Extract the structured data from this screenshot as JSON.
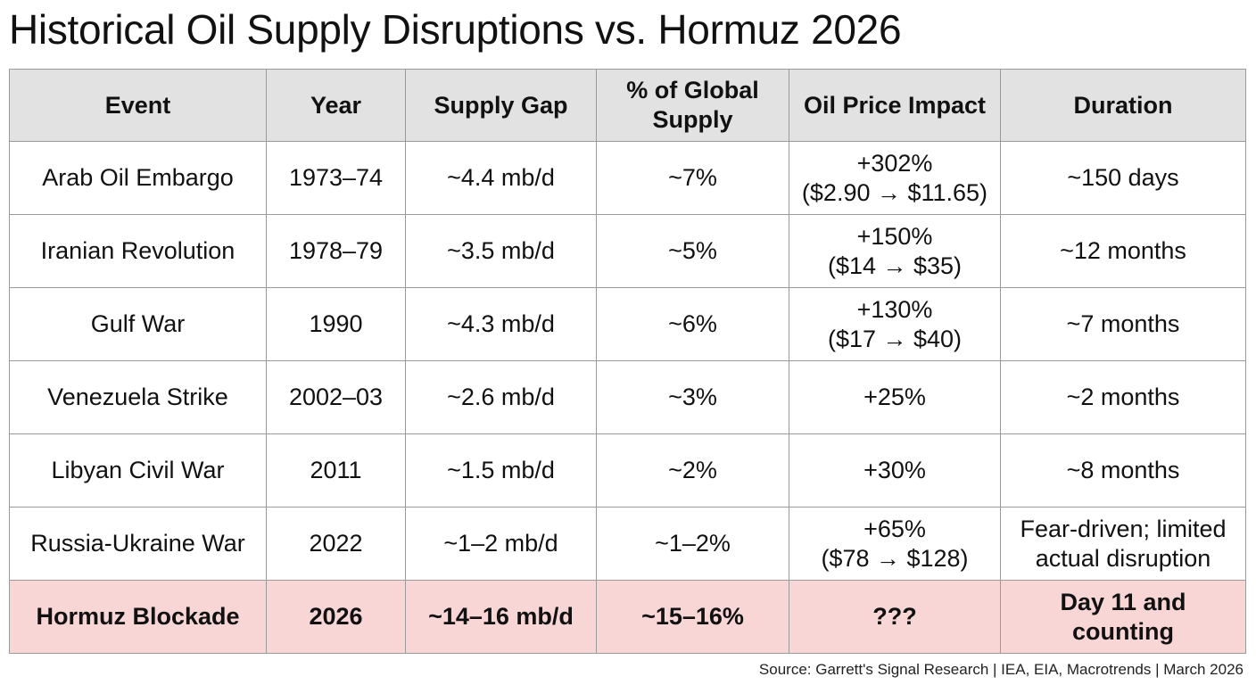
{
  "chart_data": {
    "type": "table",
    "title": "Historical Oil Supply Disruptions vs. Hormuz 2026",
    "columns": [
      "Event",
      "Year",
      "Supply Gap",
      [
        "% of Global",
        "Supply"
      ],
      "Oil Price Impact",
      "Duration"
    ],
    "rows": [
      {
        "event": "Arab Oil Embargo",
        "year": "1973–74",
        "gap": "~4.4 mb/d",
        "share": "~7%",
        "impact": [
          "+302%",
          "($2.90 → $11.65)"
        ],
        "duration": [
          "~150 days"
        ]
      },
      {
        "event": "Iranian Revolution",
        "year": "1978–79",
        "gap": "~3.5 mb/d",
        "share": "~5%",
        "impact": [
          "+150%",
          "($14 → $35)"
        ],
        "duration": [
          "~12 months"
        ]
      },
      {
        "event": "Gulf War",
        "year": "1990",
        "gap": "~4.3 mb/d",
        "share": "~6%",
        "impact": [
          "+130%",
          "($17 → $40)"
        ],
        "duration": [
          "~7 months"
        ]
      },
      {
        "event": "Venezuela Strike",
        "year": "2002–03",
        "gap": "~2.6 mb/d",
        "share": "~3%",
        "impact": [
          "+25%"
        ],
        "duration": [
          "~2 months"
        ]
      },
      {
        "event": "Libyan Civil War",
        "year": "2011",
        "gap": "~1.5 mb/d",
        "share": "~2%",
        "impact": [
          "+30%"
        ],
        "duration": [
          "~8 months"
        ]
      },
      {
        "event": "Russia-Ukraine War",
        "year": "2022",
        "gap": "~1–2 mb/d",
        "share": "~1–2%",
        "impact": [
          "+65%",
          "($78 → $128)"
        ],
        "duration": [
          "Fear-driven; limited",
          "actual disruption"
        ]
      },
      {
        "event": "Hormuz Blockade",
        "year": "2026",
        "gap": "~14–16 mb/d",
        "share": "~15–16%",
        "impact": [
          "???"
        ],
        "duration": [
          "Day 11 and",
          "counting"
        ],
        "highlight": true
      }
    ],
    "source": "Source: Garrett's Signal Research | IEA, EIA, Macrotrends | March 2026"
  },
  "colors": {
    "header_bg": "#e2e2e2",
    "highlight_bg": "#f8d6d6",
    "border": "#9a9a9a",
    "text": "#111111"
  }
}
